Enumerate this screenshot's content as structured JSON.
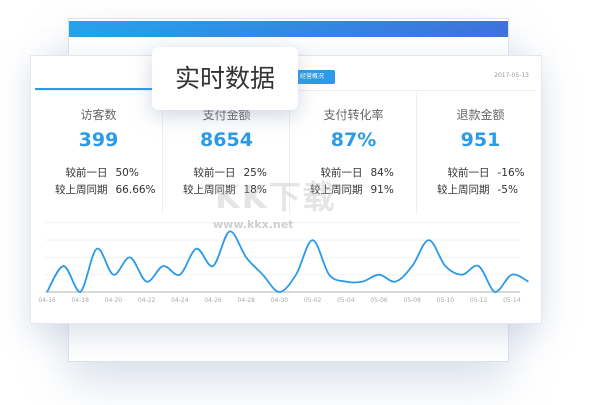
{
  "popup_title": "实时数据",
  "header": {
    "tab_label": "经营概况",
    "date": "2017-05-13"
  },
  "metrics": [
    {
      "title": "访客数",
      "value": "399",
      "rows": [
        {
          "label": "较前一日",
          "value": "50%"
        },
        {
          "label": "较上周同期",
          "value": "66.66%"
        }
      ]
    },
    {
      "title": "支付金额",
      "value": "8654",
      "rows": [
        {
          "label": "较前一日",
          "value": "25%"
        },
        {
          "label": "较上周同期",
          "value": "18%"
        }
      ]
    },
    {
      "title": "支付转化率",
      "value": "87%",
      "rows": [
        {
          "label": "较前一日",
          "value": "84%"
        },
        {
          "label": "较上周同期",
          "value": "91%"
        }
      ]
    },
    {
      "title": "退款金额",
      "value": "951",
      "rows": [
        {
          "label": "较前一日",
          "value": "-16%"
        },
        {
          "label": "较上周同期",
          "value": "-5%"
        }
      ]
    }
  ],
  "watermark": {
    "logo": "KK下载",
    "url": "www.kkx.net"
  },
  "colors": {
    "accent": "#2b9be8",
    "bar_start": "#26a3ea",
    "bar_end": "#3f72db"
  },
  "chart_data": {
    "type": "line",
    "x": [
      "04-16",
      "04-17",
      "04-18",
      "04-19",
      "04-20",
      "04-21",
      "04-22",
      "04-23",
      "04-24",
      "04-25",
      "04-26",
      "04-27",
      "04-28",
      "04-29",
      "04-30",
      "05-01",
      "05-02",
      "05-03",
      "05-04",
      "05-05",
      "05-06",
      "05-07",
      "05-08",
      "05-09",
      "05-10",
      "05-11",
      "05-12",
      "05-13",
      "05-14",
      "05-15"
    ],
    "values": [
      0,
      1.5,
      0,
      2.5,
      1,
      2,
      0.6,
      1.5,
      1,
      2.5,
      1.5,
      3.5,
      2,
      1,
      0,
      1,
      3,
      1,
      0.6,
      0.6,
      1,
      0.6,
      1.5,
      3,
      1.5,
      1,
      1.5,
      0,
      1,
      0.6
    ],
    "tick_labels": [
      "04-16",
      "04-18",
      "04-20",
      "04-22",
      "04-24",
      "04-26",
      "04-28",
      "04-30",
      "05-02",
      "05-04",
      "05-06",
      "05-08",
      "05-10",
      "05-12",
      "05-14"
    ],
    "ylim": [
      0,
      4
    ],
    "grid": true,
    "color": "#2b9be8"
  }
}
